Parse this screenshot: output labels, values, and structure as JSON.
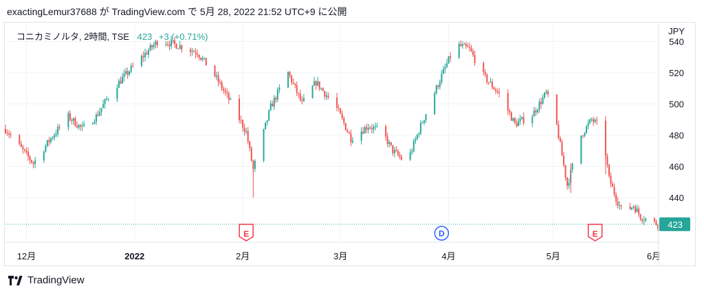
{
  "header": {
    "text": "exactingLemur37688 が TradingView.com で 5月 28, 2022 21:52 UTC+9 に公開"
  },
  "legend": {
    "symbol": "コニカミノルタ, 2時間, TSE",
    "price": "423",
    "change": "+3 (+0.71%)"
  },
  "footer": {
    "brand": "TradingView"
  },
  "colors": {
    "up": "#26a69a",
    "down": "#ef5350",
    "grid": "#f0f3fa",
    "event_e": "#f23645",
    "event_d": "#2962ff"
  },
  "chart_data": {
    "type": "candlestick",
    "currency": "JPY",
    "y_range": [
      412,
      552
    ],
    "y_ticks": [
      440,
      460,
      480,
      500,
      520,
      540
    ],
    "last_price": 423,
    "last_price_label": "423",
    "x_range": [
      "2021-11-25",
      "2022-05-31"
    ],
    "x_ticks": [
      {
        "date": "2021-12-01",
        "label": "12月",
        "bold": false
      },
      {
        "date": "2022-01-01",
        "label": "2022",
        "bold": true
      },
      {
        "date": "2022-02-01",
        "label": "2月",
        "bold": false
      },
      {
        "date": "2022-03-01",
        "label": "3月",
        "bold": false
      },
      {
        "date": "2022-04-01",
        "label": "4月",
        "bold": false
      },
      {
        "date": "2022-05-01",
        "label": "5月",
        "bold": false
      },
      {
        "date": "2022-06-01",
        "label": "6月",
        "bold": false
      }
    ],
    "events": [
      {
        "date": "2022-02-02",
        "type": "E"
      },
      {
        "date": "2022-03-30",
        "type": "D"
      },
      {
        "date": "2022-05-13",
        "type": "E"
      }
    ],
    "close_path": [
      [
        "2021-11-25",
        484
      ],
      [
        "2021-11-30",
        470
      ],
      [
        "2021-12-03",
        462
      ],
      [
        "2021-12-08",
        478
      ],
      [
        "2021-12-13",
        492
      ],
      [
        "2021-12-17",
        484
      ],
      [
        "2021-12-21",
        492
      ],
      [
        "2021-12-26",
        510
      ],
      [
        "2021-12-30",
        520
      ],
      [
        "2022-01-04",
        532
      ],
      [
        "2022-01-08",
        541
      ],
      [
        "2022-01-14",
        537
      ],
      [
        "2022-01-19",
        533
      ],
      [
        "2022-01-24",
        518
      ],
      [
        "2022-01-28",
        503
      ],
      [
        "2022-02-02",
        482
      ],
      [
        "2022-02-04",
        458
      ],
      [
        "2022-02-09",
        498
      ],
      [
        "2022-02-14",
        520
      ],
      [
        "2022-02-18",
        500
      ],
      [
        "2022-02-22",
        514
      ],
      [
        "2022-02-28",
        497
      ],
      [
        "2022-03-04",
        478
      ],
      [
        "2022-03-09",
        486
      ],
      [
        "2022-03-13",
        482
      ],
      [
        "2022-03-16",
        470
      ],
      [
        "2022-03-20",
        462
      ],
      [
        "2022-03-24",
        486
      ],
      [
        "2022-03-30",
        518
      ],
      [
        "2022-04-03",
        538
      ],
      [
        "2022-04-07",
        535
      ],
      [
        "2022-04-11",
        518
      ],
      [
        "2022-04-16",
        505
      ],
      [
        "2022-04-20",
        487
      ],
      [
        "2022-04-25",
        493
      ],
      [
        "2022-04-29",
        507
      ],
      [
        "2022-05-02",
        486
      ],
      [
        "2022-05-05",
        448
      ],
      [
        "2022-05-09",
        480
      ],
      [
        "2022-05-12",
        490
      ],
      [
        "2022-05-15",
        484
      ],
      [
        "2022-05-17",
        452
      ],
      [
        "2022-05-19",
        440
      ],
      [
        "2022-05-21",
        430
      ],
      [
        "2022-05-24",
        435
      ],
      [
        "2022-05-26",
        428
      ],
      [
        "2022-05-31",
        423
      ]
    ]
  }
}
